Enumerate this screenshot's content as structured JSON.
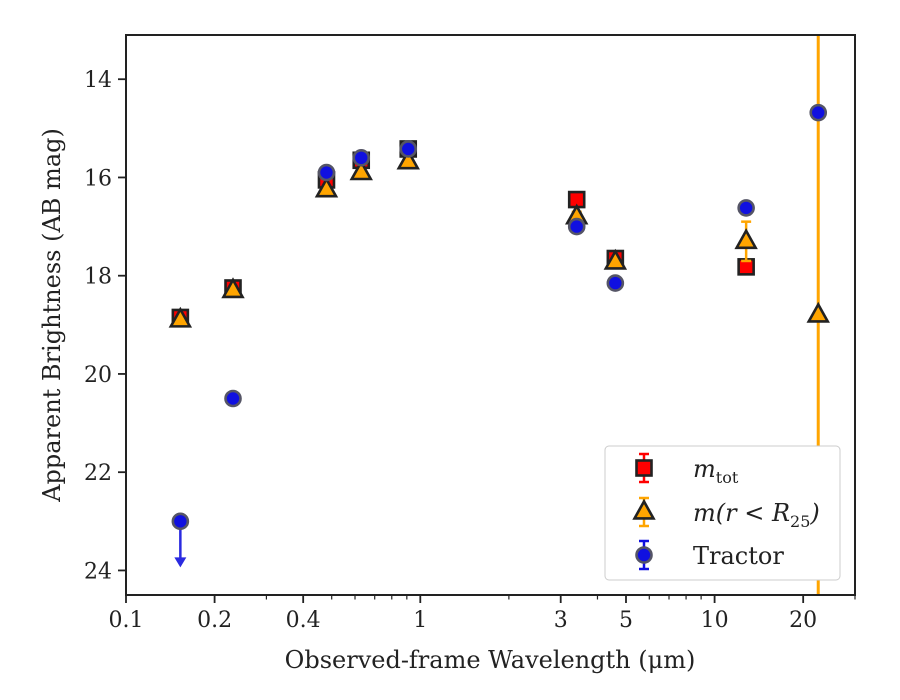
{
  "chart_data": {
    "type": "scatter",
    "xlabel": "Observed-frame Wavelength (μm)",
    "ylabel": "Apparent Brightness (AB mag)",
    "xscale": "log",
    "xlim": [
      0.1,
      30
    ],
    "ylim": [
      24.5,
      13.1
    ],
    "y_inverted": true,
    "xticks": [
      {
        "value": 0.1,
        "label": "0.1"
      },
      {
        "value": 0.2,
        "label": "0.2"
      },
      {
        "value": 0.4,
        "label": "0.4"
      },
      {
        "value": 1,
        "label": "1"
      },
      {
        "value": 3,
        "label": "3"
      },
      {
        "value": 5,
        "label": "5"
      },
      {
        "value": 10,
        "label": "10"
      },
      {
        "value": 20,
        "label": "20"
      }
    ],
    "yticks": [
      {
        "value": 14,
        "label": "14"
      },
      {
        "value": 16,
        "label": "16"
      },
      {
        "value": 18,
        "label": "18"
      },
      {
        "value": 20,
        "label": "20"
      },
      {
        "value": 22,
        "label": "22"
      },
      {
        "value": 24,
        "label": "24"
      }
    ],
    "grid": false,
    "legend_position": "lower right",
    "series": [
      {
        "name": "m_tot",
        "legend_main": "m",
        "legend_sub": "tot",
        "marker": "square",
        "color": "#ff0000",
        "edge": "#222222",
        "x": [
          0.153,
          0.231,
          0.48,
          0.63,
          0.91,
          3.4,
          4.6,
          12.8
        ],
        "y": [
          18.85,
          18.25,
          16.05,
          15.65,
          15.42,
          16.45,
          17.65,
          17.82
        ]
      },
      {
        "name": "m(r < R25)",
        "legend_main": "m(r < R",
        "legend_sub": "25",
        "legend_close": ")",
        "marker": "triangle",
        "color": "#ffa500",
        "edge": "#222222",
        "x": [
          0.153,
          0.231,
          0.48,
          0.63,
          0.91,
          3.4,
          4.6,
          12.8,
          22.5
        ],
        "y": [
          18.9,
          18.3,
          16.25,
          15.9,
          15.68,
          16.8,
          17.72,
          17.3,
          18.8
        ],
        "err": [
          0,
          0,
          0,
          0,
          0,
          0.1,
          0,
          0.4,
          0
        ]
      },
      {
        "name": "Tractor",
        "marker": "circle",
        "color": "#1010e0",
        "edge": "#555566",
        "x": [
          0.153,
          0.231,
          0.48,
          0.63,
          0.91,
          3.4,
          4.6,
          12.8,
          22.5
        ],
        "y": [
          23.0,
          20.5,
          15.9,
          15.6,
          15.42,
          17.0,
          18.15,
          16.62,
          14.68
        ],
        "upper_limit_index": 0
      }
    ],
    "vertical_line": {
      "x": 22.5,
      "color": "#ffa500"
    }
  }
}
